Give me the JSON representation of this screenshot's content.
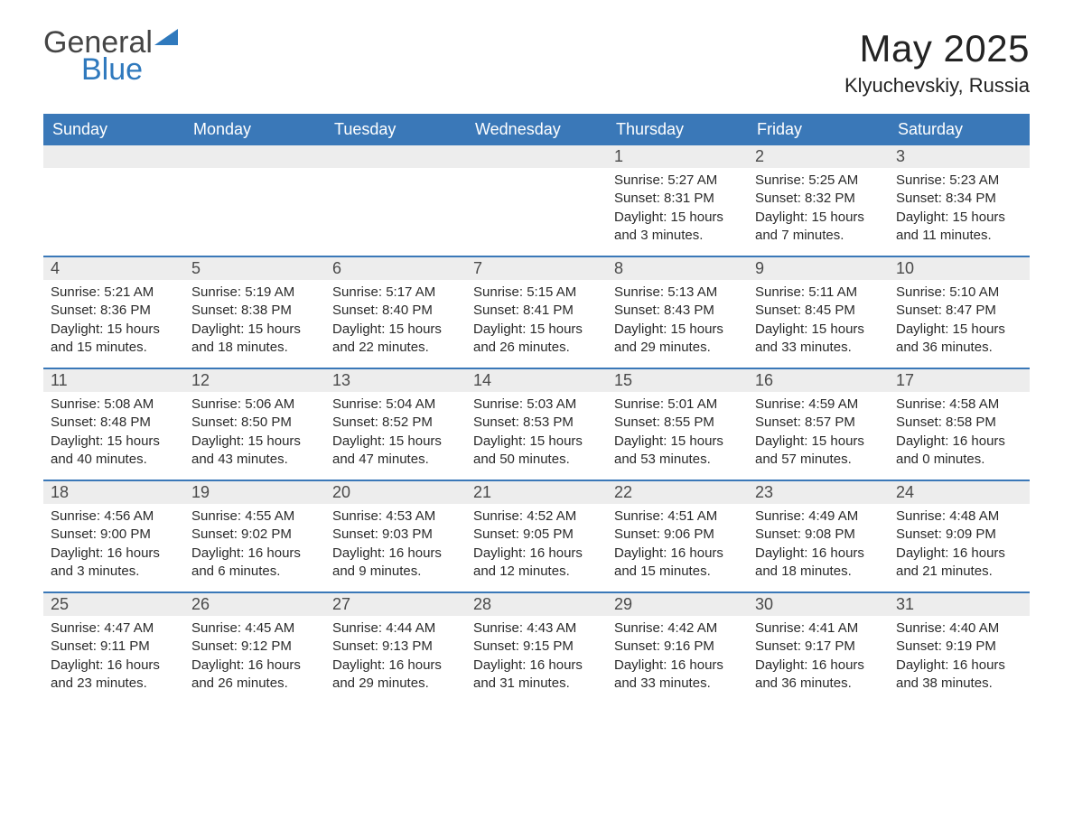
{
  "logo": {
    "word1": "General",
    "word2": "Blue",
    "accent_color": "#2f79bd",
    "text_color": "#454545"
  },
  "title": "May 2025",
  "location": "Klyuchevskiy, Russia",
  "colors": {
    "header_bg": "#3a78b8",
    "header_fg": "#ffffff",
    "daynum_bg": "#ededed",
    "daynum_fg": "#4a4a4a",
    "week_border": "#3a78b8",
    "body_text": "#2a2a2a",
    "page_bg": "#ffffff"
  },
  "day_names": [
    "Sunday",
    "Monday",
    "Tuesday",
    "Wednesday",
    "Thursday",
    "Friday",
    "Saturday"
  ],
  "weeks": [
    [
      null,
      null,
      null,
      null,
      {
        "n": "1",
        "sunrise": "5:27 AM",
        "sunset": "8:31 PM",
        "daylight": "15 hours and 3 minutes."
      },
      {
        "n": "2",
        "sunrise": "5:25 AM",
        "sunset": "8:32 PM",
        "daylight": "15 hours and 7 minutes."
      },
      {
        "n": "3",
        "sunrise": "5:23 AM",
        "sunset": "8:34 PM",
        "daylight": "15 hours and 11 minutes."
      }
    ],
    [
      {
        "n": "4",
        "sunrise": "5:21 AM",
        "sunset": "8:36 PM",
        "daylight": "15 hours and 15 minutes."
      },
      {
        "n": "5",
        "sunrise": "5:19 AM",
        "sunset": "8:38 PM",
        "daylight": "15 hours and 18 minutes."
      },
      {
        "n": "6",
        "sunrise": "5:17 AM",
        "sunset": "8:40 PM",
        "daylight": "15 hours and 22 minutes."
      },
      {
        "n": "7",
        "sunrise": "5:15 AM",
        "sunset": "8:41 PM",
        "daylight": "15 hours and 26 minutes."
      },
      {
        "n": "8",
        "sunrise": "5:13 AM",
        "sunset": "8:43 PM",
        "daylight": "15 hours and 29 minutes."
      },
      {
        "n": "9",
        "sunrise": "5:11 AM",
        "sunset": "8:45 PM",
        "daylight": "15 hours and 33 minutes."
      },
      {
        "n": "10",
        "sunrise": "5:10 AM",
        "sunset": "8:47 PM",
        "daylight": "15 hours and 36 minutes."
      }
    ],
    [
      {
        "n": "11",
        "sunrise": "5:08 AM",
        "sunset": "8:48 PM",
        "daylight": "15 hours and 40 minutes."
      },
      {
        "n": "12",
        "sunrise": "5:06 AM",
        "sunset": "8:50 PM",
        "daylight": "15 hours and 43 minutes."
      },
      {
        "n": "13",
        "sunrise": "5:04 AM",
        "sunset": "8:52 PM",
        "daylight": "15 hours and 47 minutes."
      },
      {
        "n": "14",
        "sunrise": "5:03 AM",
        "sunset": "8:53 PM",
        "daylight": "15 hours and 50 minutes."
      },
      {
        "n": "15",
        "sunrise": "5:01 AM",
        "sunset": "8:55 PM",
        "daylight": "15 hours and 53 minutes."
      },
      {
        "n": "16",
        "sunrise": "4:59 AM",
        "sunset": "8:57 PM",
        "daylight": "15 hours and 57 minutes."
      },
      {
        "n": "17",
        "sunrise": "4:58 AM",
        "sunset": "8:58 PM",
        "daylight": "16 hours and 0 minutes."
      }
    ],
    [
      {
        "n": "18",
        "sunrise": "4:56 AM",
        "sunset": "9:00 PM",
        "daylight": "16 hours and 3 minutes."
      },
      {
        "n": "19",
        "sunrise": "4:55 AM",
        "sunset": "9:02 PM",
        "daylight": "16 hours and 6 minutes."
      },
      {
        "n": "20",
        "sunrise": "4:53 AM",
        "sunset": "9:03 PM",
        "daylight": "16 hours and 9 minutes."
      },
      {
        "n": "21",
        "sunrise": "4:52 AM",
        "sunset": "9:05 PM",
        "daylight": "16 hours and 12 minutes."
      },
      {
        "n": "22",
        "sunrise": "4:51 AM",
        "sunset": "9:06 PM",
        "daylight": "16 hours and 15 minutes."
      },
      {
        "n": "23",
        "sunrise": "4:49 AM",
        "sunset": "9:08 PM",
        "daylight": "16 hours and 18 minutes."
      },
      {
        "n": "24",
        "sunrise": "4:48 AM",
        "sunset": "9:09 PM",
        "daylight": "16 hours and 21 minutes."
      }
    ],
    [
      {
        "n": "25",
        "sunrise": "4:47 AM",
        "sunset": "9:11 PM",
        "daylight": "16 hours and 23 minutes."
      },
      {
        "n": "26",
        "sunrise": "4:45 AM",
        "sunset": "9:12 PM",
        "daylight": "16 hours and 26 minutes."
      },
      {
        "n": "27",
        "sunrise": "4:44 AM",
        "sunset": "9:13 PM",
        "daylight": "16 hours and 29 minutes."
      },
      {
        "n": "28",
        "sunrise": "4:43 AM",
        "sunset": "9:15 PM",
        "daylight": "16 hours and 31 minutes."
      },
      {
        "n": "29",
        "sunrise": "4:42 AM",
        "sunset": "9:16 PM",
        "daylight": "16 hours and 33 minutes."
      },
      {
        "n": "30",
        "sunrise": "4:41 AM",
        "sunset": "9:17 PM",
        "daylight": "16 hours and 36 minutes."
      },
      {
        "n": "31",
        "sunrise": "4:40 AM",
        "sunset": "9:19 PM",
        "daylight": "16 hours and 38 minutes."
      }
    ]
  ],
  "labels": {
    "sunrise": "Sunrise:",
    "sunset": "Sunset:",
    "daylight": "Daylight:"
  }
}
